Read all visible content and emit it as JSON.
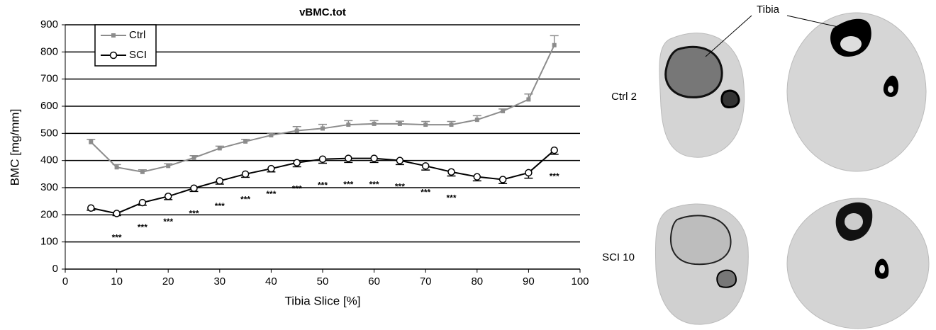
{
  "chart_data": {
    "type": "line",
    "title": "vBMC.tot",
    "x_label": "Tibia Slice [%]",
    "y_label": "BMC [mg/mm]",
    "x": [
      5,
      10,
      15,
      20,
      25,
      30,
      35,
      40,
      45,
      50,
      55,
      60,
      65,
      70,
      75,
      80,
      85,
      90,
      95
    ],
    "series": [
      {
        "name": "Ctrl",
        "color": "#8c8c8c",
        "marker": "square",
        "error_direction": "up",
        "values": [
          468,
          375,
          358,
          380,
          410,
          445,
          470,
          493,
          510,
          518,
          532,
          535,
          535,
          532,
          532,
          550,
          582,
          625,
          825
        ],
        "errors": [
          10,
          10,
          8,
          8,
          8,
          8,
          8,
          8,
          15,
          15,
          15,
          12,
          10,
          12,
          12,
          15,
          8,
          20,
          35
        ]
      },
      {
        "name": "SCI",
        "color": "#000000",
        "marker": "circle",
        "error_direction": "down",
        "values": [
          225,
          205,
          245,
          268,
          298,
          325,
          350,
          370,
          392,
          405,
          408,
          408,
          400,
          380,
          358,
          340,
          330,
          355,
          438
        ],
        "errors": [
          8,
          8,
          10,
          12,
          12,
          12,
          12,
          12,
          15,
          15,
          15,
          15,
          15,
          15,
          15,
          15,
          15,
          20,
          15
        ]
      }
    ],
    "annotations": [
      {
        "x": 10,
        "text": "***"
      },
      {
        "x": 15,
        "text": "***"
      },
      {
        "x": 20,
        "text": "***"
      },
      {
        "x": 25,
        "text": "***"
      },
      {
        "x": 30,
        "text": "***"
      },
      {
        "x": 35,
        "text": "***"
      },
      {
        "x": 40,
        "text": "***"
      },
      {
        "x": 45,
        "text": "***"
      },
      {
        "x": 50,
        "text": "***"
      },
      {
        "x": 55,
        "text": "***"
      },
      {
        "x": 60,
        "text": "***"
      },
      {
        "x": 65,
        "text": "***"
      },
      {
        "x": 70,
        "text": "***"
      },
      {
        "x": 75,
        "text": "***"
      },
      {
        "x": 95,
        "text": "***"
      }
    ],
    "xlim": [
      0,
      100
    ],
    "xticks": [
      0,
      10,
      20,
      30,
      40,
      50,
      60,
      70,
      80,
      90,
      100
    ],
    "ylim": [
      0,
      900
    ],
    "yticks": [
      0,
      100,
      200,
      300,
      400,
      500,
      600,
      700,
      800,
      900
    ],
    "grid": true,
    "legend": "upper left"
  },
  "images": {
    "pointer_label": "Tibia",
    "rows": [
      "Ctrl 2",
      "SCI 10"
    ]
  }
}
